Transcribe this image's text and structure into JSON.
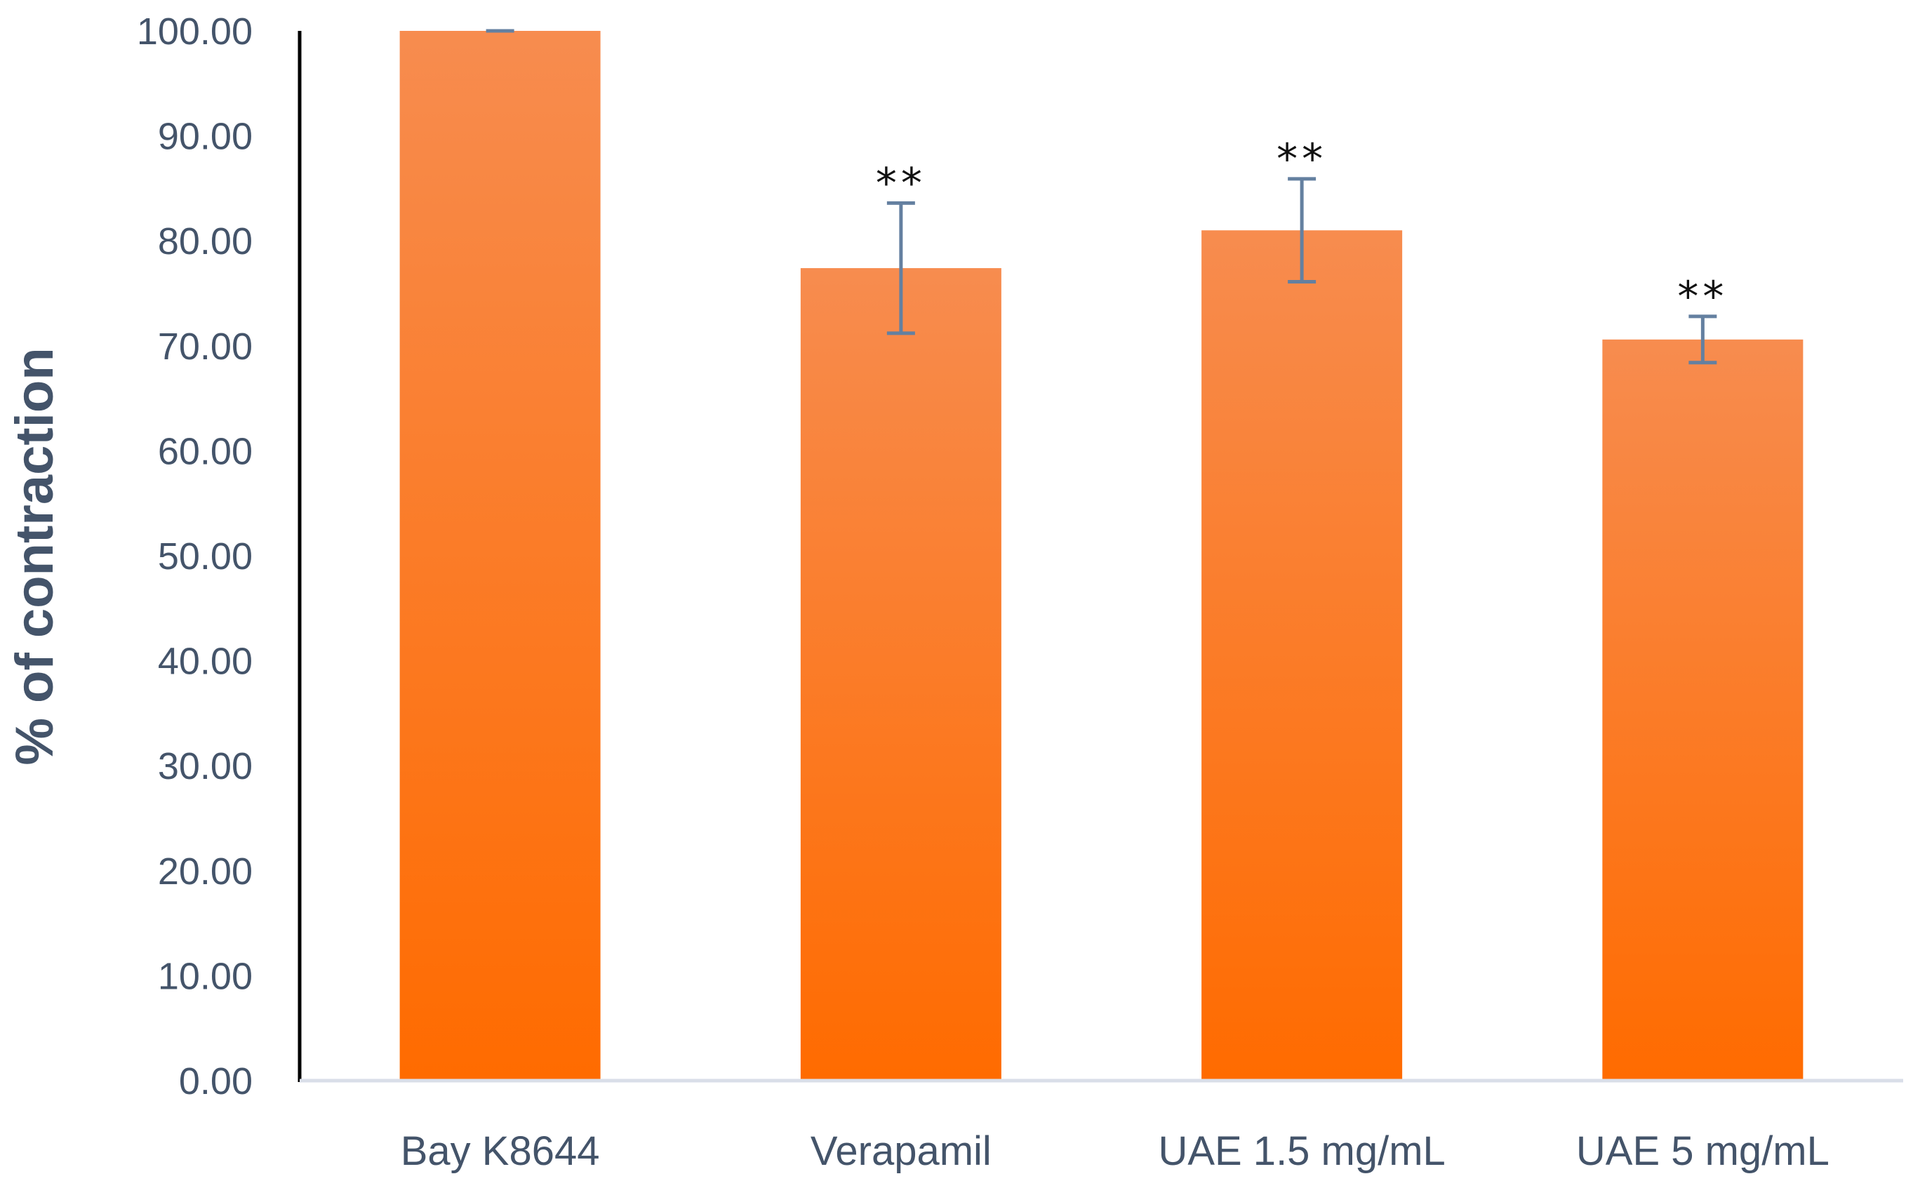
{
  "chart_data": {
    "type": "bar",
    "title": "",
    "xlabel": "",
    "ylabel": "% of contraction",
    "ylim": [
      0,
      100
    ],
    "yticks": [
      0,
      10,
      20,
      30,
      40,
      50,
      60,
      70,
      80,
      90,
      100
    ],
    "ytick_labels": [
      "0.00",
      "10.00",
      "20.00",
      "30.00",
      "40.00",
      "50.00",
      "60.00",
      "70.00",
      "80.00",
      "90.00",
      "100.00"
    ],
    "categories": [
      "Bay K8644",
      "Verapamil",
      "UAE 1.5 mg/mL",
      "UAE 5 mg/mL"
    ],
    "values": [
      100.0,
      77.4,
      81.0,
      70.6
    ],
    "errors": [
      0.0,
      6.2,
      4.9,
      2.2
    ],
    "annotations": [
      "",
      "**",
      "**",
      "**"
    ],
    "grid": false,
    "legend": "none",
    "colors": {
      "bar_top": "#f78c4f",
      "bar_bottom": "#ff6b00",
      "error_bar": "#6480a0",
      "axis_x": "#d9dee8",
      "axis_y": "#000000"
    }
  }
}
